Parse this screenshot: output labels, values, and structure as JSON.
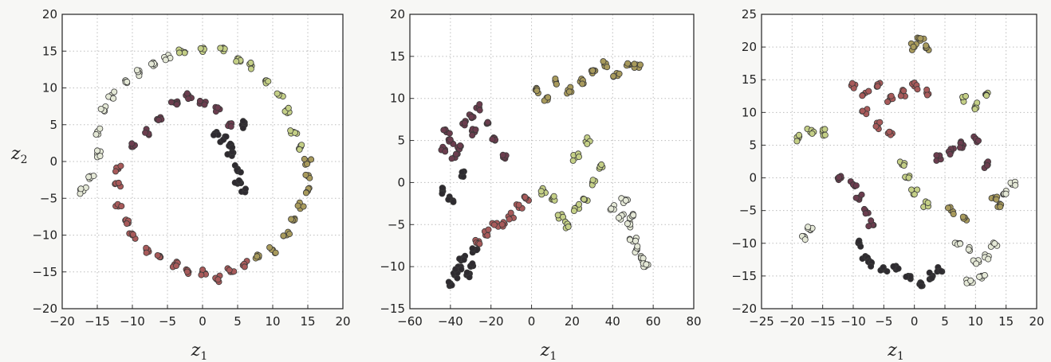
{
  "chart_data": [
    {
      "type": "scatter",
      "title": "",
      "xlabel": "z",
      "xlabel_sub": "1",
      "ylabel": "z",
      "ylabel_sub": "2",
      "xlim": [
        -20,
        20
      ],
      "ylim": [
        -20,
        20
      ],
      "xticks": [
        -20,
        -15,
        -10,
        -5,
        0,
        5,
        10,
        15,
        20
      ],
      "yticks": [
        -20,
        -15,
        -10,
        -5,
        0,
        5,
        10,
        15,
        20
      ],
      "xtick_labels": [
        "−20",
        "−15",
        "−10",
        "−5",
        "0",
        "5",
        "10",
        "15",
        "20"
      ],
      "ytick_labels": [
        "−20",
        "−15",
        "−10",
        "−5",
        "0",
        "5",
        "10",
        "15",
        "20"
      ],
      "grid": true,
      "structure": "ring of points, color shifting with angle, plus a dark cluster inside",
      "colormap": [
        "#2e2b30",
        "#6b3d4e",
        "#a85a5a",
        "#a89a5c",
        "#c4cf86",
        "#e4e8d6"
      ],
      "series": [
        {
          "points": [
            [
              -17,
              -4
            ],
            [
              -16,
              -2
            ],
            [
              -15,
              1
            ],
            [
              -15,
              4
            ],
            [
              -14,
              7
            ],
            [
              -13,
              9
            ],
            [
              -11,
              11
            ],
            [
              -9,
              12
            ],
            [
              -7,
              13
            ],
            [
              -5,
              14
            ]
          ],
          "color_index": 5
        },
        {
          "points": [
            [
              -3,
              15
            ],
            [
              0,
              15
            ],
            [
              3,
              15
            ],
            [
              5,
              14
            ],
            [
              7,
              13
            ],
            [
              9,
              11
            ],
            [
              11,
              9
            ],
            [
              12,
              7
            ],
            [
              13,
              4
            ],
            [
              14,
              2
            ]
          ],
          "color_index": 4
        },
        {
          "points": [
            [
              15,
              0
            ],
            [
              15,
              -2
            ],
            [
              15,
              -4
            ],
            [
              14,
              -6
            ],
            [
              13,
              -8
            ],
            [
              12,
              -10
            ],
            [
              10,
              -12
            ],
            [
              8,
              -13
            ]
          ],
          "color_index": 3
        },
        {
          "points": [
            [
              6,
              -14
            ],
            [
              4,
              -15
            ],
            [
              2,
              -16
            ],
            [
              0,
              -15
            ],
            [
              -2,
              -15
            ],
            [
              -4,
              -14
            ],
            [
              -6,
              -13
            ],
            [
              -8,
              -12
            ],
            [
              -10,
              -10
            ],
            [
              -11,
              -8
            ],
            [
              -12,
              -6
            ],
            [
              -12,
              -3
            ],
            [
              -12,
              -1
            ]
          ],
          "color_index": 2
        },
        {
          "points": [
            [
              -10,
              2
            ],
            [
              -8,
              4
            ],
            [
              -6,
              6
            ],
            [
              -4,
              8
            ],
            [
              -2,
              9
            ],
            [
              0,
              8
            ],
            [
              2,
              7
            ],
            [
              4,
              5
            ]
          ],
          "color_index": 1
        },
        {
          "points": [
            [
              3,
              3
            ],
            [
              4,
              1
            ],
            [
              5,
              -1
            ],
            [
              5,
              -3
            ],
            [
              6,
              -4
            ],
            [
              4,
              2
            ],
            [
              6,
              5
            ],
            [
              2,
              4
            ]
          ],
          "color_index": 0
        }
      ]
    },
    {
      "type": "scatter",
      "title": "",
      "xlabel": "z",
      "xlabel_sub": "1",
      "ylabel": "",
      "ylabel_sub": "",
      "xlim": [
        -60,
        80
      ],
      "ylim": [
        -15,
        20
      ],
      "xticks": [
        -60,
        -40,
        -20,
        0,
        20,
        40,
        60,
        80
      ],
      "yticks": [
        -15,
        -10,
        -5,
        0,
        5,
        10,
        15,
        20
      ],
      "xtick_labels": [
        "−60",
        "−40",
        "−20",
        "0",
        "20",
        "40",
        "60",
        "80"
      ],
      "ytick_labels": [
        "−15",
        "−10",
        "−5",
        "0",
        "5",
        "10",
        "15",
        "20"
      ],
      "grid": true,
      "structure": "dense dark blob upper-left, scattered strands to the right",
      "colormap": [
        "#2e2b30",
        "#6b3d4e",
        "#a85a5a",
        "#a89a5c",
        "#c4cf86",
        "#e4e8d6"
      ],
      "series": [
        {
          "points": [
            [
              -44,
              4
            ],
            [
              -42,
              6
            ],
            [
              -40,
              5
            ],
            [
              -38,
              3
            ],
            [
              -36,
              4
            ],
            [
              -34,
              7
            ],
            [
              -30,
              8
            ],
            [
              -28,
              6
            ],
            [
              -26,
              9
            ],
            [
              -22,
              7
            ],
            [
              -18,
              5
            ],
            [
              -14,
              3
            ]
          ],
          "color_index": 1
        },
        {
          "points": [
            [
              -40,
              -12
            ],
            [
              -38,
              -11
            ],
            [
              -36,
              -10
            ],
            [
              -34,
              -9
            ],
            [
              -32,
              -11
            ],
            [
              -30,
              -10
            ],
            [
              -28,
              -8
            ],
            [
              -44,
              -1
            ],
            [
              -40,
              -2
            ],
            [
              -34,
              1
            ]
          ],
          "color_index": 0
        },
        {
          "points": [
            [
              -26,
              -7
            ],
            [
              -22,
              -6
            ],
            [
              -18,
              -5
            ],
            [
              -14,
              -5
            ],
            [
              -10,
              -4
            ],
            [
              -6,
              -3
            ],
            [
              -2,
              -2
            ]
          ],
          "color_index": 2
        },
        {
          "points": [
            [
              2,
              11
            ],
            [
              8,
              10
            ],
            [
              12,
              12
            ],
            [
              18,
              11
            ],
            [
              24,
              12
            ],
            [
              30,
              13
            ],
            [
              36,
              14
            ],
            [
              42,
              13
            ],
            [
              48,
              14
            ],
            [
              52,
              14
            ]
          ],
          "color_index": 3
        },
        {
          "points": [
            [
              6,
              -1
            ],
            [
              10,
              -2
            ],
            [
              14,
              -4
            ],
            [
              18,
              -5
            ],
            [
              22,
              -3
            ],
            [
              26,
              -2
            ],
            [
              30,
              0
            ],
            [
              34,
              2
            ],
            [
              22,
              3
            ],
            [
              28,
              5
            ]
          ],
          "color_index": 4
        },
        {
          "points": [
            [
              40,
              -3
            ],
            [
              44,
              -4
            ],
            [
              48,
              -5
            ],
            [
              50,
              -7
            ],
            [
              52,
              -8
            ],
            [
              54,
              -9
            ],
            [
              56,
              -10
            ],
            [
              46,
              -2
            ],
            [
              50,
              -4
            ]
          ],
          "color_index": 5
        }
      ]
    },
    {
      "type": "scatter",
      "title": "",
      "xlabel": "z",
      "xlabel_sub": "1",
      "ylabel": "",
      "ylabel_sub": "",
      "xlim": [
        -25,
        20
      ],
      "ylim": [
        -20,
        25
      ],
      "xticks": [
        -25,
        -20,
        -15,
        -10,
        -5,
        0,
        5,
        10,
        15,
        20
      ],
      "yticks": [
        -20,
        -15,
        -10,
        -5,
        0,
        5,
        10,
        15,
        20,
        25
      ],
      "xtick_labels": [
        "−25",
        "−20",
        "−15",
        "−10",
        "−5",
        "0",
        "5",
        "10",
        "15",
        "20"
      ],
      "ytick_labels": [
        "−20",
        "−15",
        "−10",
        "−5",
        "0",
        "5",
        "10",
        "15",
        "20",
        "25"
      ],
      "grid": true,
      "structure": "many small separate clusters",
      "colormap": [
        "#2e2b30",
        "#6b3d4e",
        "#a85a5a",
        "#a89a5c",
        "#c4cf86",
        "#e4e8d6"
      ],
      "series": [
        {
          "points": [
            [
              -10,
              14
            ],
            [
              -8,
              13
            ],
            [
              -6,
              14
            ],
            [
              -4,
              12
            ],
            [
              -2,
              13
            ],
            [
              0,
              14
            ],
            [
              2,
              13
            ],
            [
              -8,
              10
            ],
            [
              -6,
              8
            ],
            [
              -4,
              7
            ]
          ],
          "color_index": 2
        },
        {
          "points": [
            [
              -12,
              0
            ],
            [
              -10,
              -1
            ],
            [
              -9,
              -3
            ],
            [
              -8,
              -5
            ],
            [
              -7,
              -7
            ],
            [
              4,
              3
            ],
            [
              6,
              4
            ],
            [
              8,
              5
            ],
            [
              10,
              6
            ],
            [
              12,
              2
            ]
          ],
          "color_index": 1
        },
        {
          "points": [
            [
              -9,
              -10
            ],
            [
              -8,
              -12
            ],
            [
              -7,
              -13
            ],
            [
              -5,
              -14
            ],
            [
              -3,
              -14
            ],
            [
              -1,
              -15
            ],
            [
              1,
              -16
            ],
            [
              3,
              -15
            ],
            [
              4,
              -14
            ]
          ],
          "color_index": 0
        },
        {
          "points": [
            [
              -19,
              6
            ],
            [
              -17,
              7
            ],
            [
              -15,
              7
            ],
            [
              -2,
              2
            ],
            [
              -1,
              0
            ],
            [
              0,
              -2
            ],
            [
              2,
              -4
            ],
            [
              8,
              12
            ],
            [
              10,
              11
            ],
            [
              12,
              13
            ]
          ],
          "color_index": 4
        },
        {
          "points": [
            [
              7,
              -10
            ],
            [
              9,
              -11
            ],
            [
              10,
              -13
            ],
            [
              12,
              -12
            ],
            [
              11,
              -15
            ],
            [
              9,
              -16
            ],
            [
              13,
              -10
            ],
            [
              15,
              -2
            ],
            [
              16,
              -1
            ],
            [
              -18,
              -9
            ],
            [
              -17,
              -8
            ]
          ],
          "color_index": 5
        },
        {
          "points": [
            [
              0,
              20
            ],
            [
              1,
              21
            ],
            [
              2,
              20
            ],
            [
              13,
              -3
            ],
            [
              14,
              -4
            ],
            [
              6,
              -5
            ],
            [
              8,
              -6
            ]
          ],
          "color_index": 3
        }
      ]
    }
  ]
}
